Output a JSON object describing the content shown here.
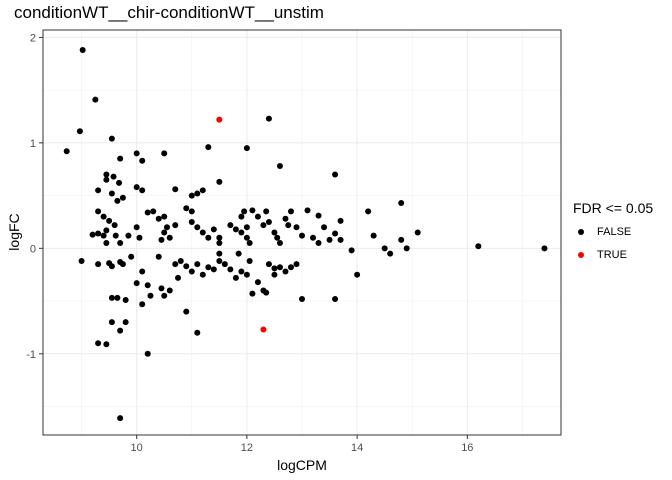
{
  "chart_data": {
    "type": "scatter",
    "title": "conditionWT__chir-conditionWT__unstim",
    "xlabel": "logCPM",
    "ylabel": "logFC",
    "xlim": [
      8.3,
      17.7
    ],
    "ylim": [
      -1.77,
      2.07
    ],
    "x_ticks": [
      10,
      12,
      14,
      16
    ],
    "y_ticks": [
      -1,
      0,
      1,
      2
    ],
    "x_tick_labels": [
      "10",
      "12",
      "14",
      "16"
    ],
    "y_tick_labels": [
      "-1",
      "0",
      "1",
      "2"
    ],
    "grid": true,
    "legend": {
      "title": "FDR <= 0.05",
      "placement": "right",
      "entries": [
        {
          "label": "FALSE",
          "color": "#000000"
        },
        {
          "label": "TRUE",
          "color": "#ff0000"
        }
      ]
    },
    "series": [
      {
        "name": "FALSE",
        "color": "#000000",
        "points": [
          [
            9.02,
            1.88
          ],
          [
            9.25,
            1.41
          ],
          [
            8.97,
            1.11
          ],
          [
            8.73,
            0.92
          ],
          [
            9.0,
            -0.12
          ],
          [
            9.55,
            1.04
          ],
          [
            9.7,
            0.85
          ],
          [
            10.0,
            0.9
          ],
          [
            10.1,
            0.83
          ],
          [
            10.5,
            0.9
          ],
          [
            12.4,
            1.23
          ],
          [
            12.0,
            0.95
          ],
          [
            11.3,
            0.96
          ],
          [
            11.5,
            0.63
          ],
          [
            12.6,
            0.78
          ],
          [
            13.6,
            0.7
          ],
          [
            9.3,
            0.55
          ],
          [
            9.45,
            0.7
          ],
          [
            9.58,
            0.68
          ],
          [
            9.68,
            0.62
          ],
          [
            9.45,
            0.65
          ],
          [
            9.55,
            0.52
          ],
          [
            9.75,
            0.48
          ],
          [
            9.65,
            0.45
          ],
          [
            10.0,
            0.58
          ],
          [
            10.1,
            0.55
          ],
          [
            10.7,
            0.56
          ],
          [
            11.0,
            0.5
          ],
          [
            11.2,
            0.55
          ],
          [
            11.1,
            0.52
          ],
          [
            9.3,
            0.35
          ],
          [
            9.4,
            0.3
          ],
          [
            9.45,
            0.17
          ],
          [
            9.5,
            0.26
          ],
          [
            9.6,
            0.22
          ],
          [
            9.3,
            0.14
          ],
          [
            9.2,
            0.13
          ],
          [
            9.4,
            0.12
          ],
          [
            9.45,
            0.05
          ],
          [
            9.62,
            0.12
          ],
          [
            9.7,
            0.05
          ],
          [
            9.85,
            0.12
          ],
          [
            10.0,
            0.2
          ],
          [
            10.05,
            0.1
          ],
          [
            10.2,
            0.34
          ],
          [
            10.3,
            0.35
          ],
          [
            10.4,
            0.28
          ],
          [
            10.5,
            0.3
          ],
          [
            10.55,
            0.2
          ],
          [
            10.5,
            0.15
          ],
          [
            10.45,
            0.08
          ],
          [
            10.6,
            0.1
          ],
          [
            10.7,
            0.22
          ],
          [
            10.9,
            0.38
          ],
          [
            11.0,
            0.35
          ],
          [
            11.0,
            0.25
          ],
          [
            11.1,
            0.2
          ],
          [
            11.2,
            0.15
          ],
          [
            11.3,
            0.1
          ],
          [
            11.4,
            0.18
          ],
          [
            11.5,
            0.1
          ],
          [
            11.5,
            0.05
          ],
          [
            11.7,
            0.22
          ],
          [
            11.8,
            0.18
          ],
          [
            11.9,
            0.15
          ],
          [
            11.9,
            0.3
          ],
          [
            11.95,
            0.35
          ],
          [
            12.0,
            0.2
          ],
          [
            12.0,
            0.1
          ],
          [
            12.05,
            0.05
          ],
          [
            12.1,
            0.36
          ],
          [
            12.2,
            0.3
          ],
          [
            12.3,
            0.22
          ],
          [
            12.35,
            0.35
          ],
          [
            12.4,
            0.25
          ],
          [
            12.5,
            0.15
          ],
          [
            12.55,
            0.1
          ],
          [
            12.6,
            0.05
          ],
          [
            12.7,
            0.28
          ],
          [
            12.8,
            0.35
          ],
          [
            12.75,
            0.22
          ],
          [
            12.9,
            0.2
          ],
          [
            13.0,
            0.12
          ],
          [
            13.1,
            0.36
          ],
          [
            13.2,
            0.1
          ],
          [
            13.3,
            0.05
          ],
          [
            13.3,
            0.31
          ],
          [
            13.4,
            0.2
          ],
          [
            13.5,
            0.08
          ],
          [
            13.6,
            0.14
          ],
          [
            13.7,
            0.26
          ],
          [
            13.7,
            0.08
          ],
          [
            13.9,
            -0.02
          ],
          [
            14.2,
            0.35
          ],
          [
            14.3,
            0.12
          ],
          [
            14.5,
            0.0
          ],
          [
            14.6,
            -0.05
          ],
          [
            14.8,
            0.43
          ],
          [
            14.8,
            0.08
          ],
          [
            14.9,
            0.0
          ],
          [
            15.1,
            0.15
          ],
          [
            16.2,
            0.02
          ],
          [
            17.4,
            0.0
          ],
          [
            9.3,
            -0.15
          ],
          [
            9.5,
            -0.14
          ],
          [
            9.55,
            -0.17
          ],
          [
            9.7,
            -0.13
          ],
          [
            9.75,
            -0.15
          ],
          [
            9.9,
            -0.08
          ],
          [
            10.0,
            -0.33
          ],
          [
            10.1,
            -0.22
          ],
          [
            10.2,
            -0.35
          ],
          [
            10.25,
            -0.45
          ],
          [
            10.4,
            -0.08
          ],
          [
            10.5,
            -0.45
          ],
          [
            10.45,
            -0.38
          ],
          [
            10.6,
            -0.4
          ],
          [
            10.7,
            -0.15
          ],
          [
            10.75,
            -0.28
          ],
          [
            10.8,
            -0.12
          ],
          [
            10.9,
            -0.17
          ],
          [
            11.0,
            -0.22
          ],
          [
            11.1,
            -0.15
          ],
          [
            11.2,
            -0.25
          ],
          [
            11.3,
            -0.18
          ],
          [
            11.4,
            -0.2
          ],
          [
            11.5,
            -0.12
          ],
          [
            11.5,
            -0.05
          ],
          [
            11.6,
            -0.15
          ],
          [
            11.7,
            -0.2
          ],
          [
            11.8,
            -0.28
          ],
          [
            11.85,
            -0.05
          ],
          [
            11.9,
            -0.22
          ],
          [
            12.0,
            -0.25
          ],
          [
            12.05,
            -0.12
          ],
          [
            12.1,
            -0.43
          ],
          [
            12.2,
            -0.32
          ],
          [
            12.3,
            -0.4
          ],
          [
            12.35,
            -0.42
          ],
          [
            12.4,
            -0.15
          ],
          [
            12.5,
            -0.25
          ],
          [
            12.5,
            -0.19
          ],
          [
            12.6,
            -0.18
          ],
          [
            12.7,
            -0.22
          ],
          [
            12.8,
            -0.18
          ],
          [
            12.9,
            -0.15
          ],
          [
            13.0,
            -0.48
          ],
          [
            13.6,
            -0.48
          ],
          [
            14.0,
            -0.25
          ],
          [
            9.55,
            -0.47
          ],
          [
            9.65,
            -0.47
          ],
          [
            9.8,
            -0.49
          ],
          [
            9.55,
            -0.7
          ],
          [
            9.8,
            -0.7
          ],
          [
            9.7,
            -0.78
          ],
          [
            9.3,
            -0.9
          ],
          [
            9.45,
            -0.91
          ],
          [
            10.2,
            -1.0
          ],
          [
            10.1,
            -0.53
          ],
          [
            10.9,
            -0.6
          ],
          [
            11.1,
            -0.8
          ],
          [
            9.7,
            -1.61
          ]
        ]
      },
      {
        "name": "TRUE",
        "color": "#ff0000",
        "points": [
          [
            11.5,
            1.22
          ],
          [
            12.3,
            -0.77
          ]
        ]
      }
    ]
  }
}
